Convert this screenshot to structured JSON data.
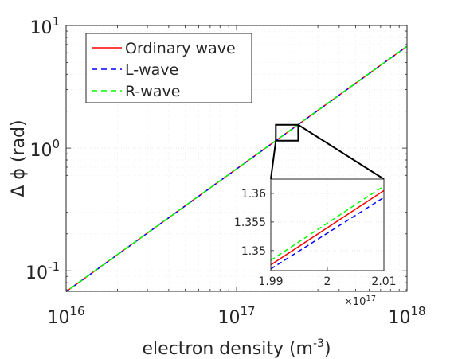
{
  "chart_data": [
    {
      "type": "line",
      "title": "",
      "xlabel": "electron density (m",
      "xlabel_exp": "-3",
      "xlabel_close": ")",
      "ylabel": "Δ ϕ (rad)",
      "xscale": "log",
      "yscale": "log",
      "xlim": [
        1e+16,
        1e+18
      ],
      "ylim": [
        0.068,
        10
      ],
      "grid": true,
      "legend_position": "top-left",
      "x_ticks": [
        {
          "value": 1e+16,
          "base": "10",
          "exp": "16"
        },
        {
          "value": 1e+17,
          "base": "10",
          "exp": "17"
        },
        {
          "value": 1e+18,
          "base": "10",
          "exp": "18"
        }
      ],
      "y_ticks": [
        {
          "value": 0.1,
          "base": "10",
          "exp": "-1"
        },
        {
          "value": 1,
          "base": "10",
          "exp": "0"
        },
        {
          "value": 10,
          "base": "10",
          "exp": "1"
        }
      ],
      "series": [
        {
          "name": "Ordinary wave",
          "color": "#ff0000",
          "dash": "solid",
          "x": [
            1e+16,
            1e+18
          ],
          "y": [
            0.0677,
            6.77
          ]
        },
        {
          "name": "L-wave",
          "color": "#0000ff",
          "dash": "dashed",
          "x": [
            1e+16,
            1e+18
          ],
          "y": [
            0.0676,
            6.76
          ]
        },
        {
          "name": "R-wave",
          "color": "#00ff00",
          "dash": "dashed",
          "x": [
            1e+16,
            1e+18
          ],
          "y": [
            0.0678,
            6.78
          ]
        }
      ],
      "zoom_box": {
        "x": [
          1.7e+17,
          2.3e+17
        ],
        "y": [
          1.15,
          1.55
        ]
      }
    },
    {
      "type": "line",
      "title": "",
      "xlim": [
        1.99e+17,
        2.01e+17
      ],
      "ylim": [
        1.3465,
        1.3625
      ],
      "x_ticks": [
        {
          "value": 1.99e+17,
          "label": "1.99"
        },
        {
          "value": 2e+17,
          "label": "2"
        },
        {
          "value": 2.01e+17,
          "label": "2.01"
        }
      ],
      "x_multiplier": {
        "base": "×10",
        "exp": "17"
      },
      "y_ticks": [
        {
          "value": 1.35,
          "label": "1.35"
        },
        {
          "value": 1.355,
          "label": "1.355"
        },
        {
          "value": 1.36,
          "label": "1.36"
        }
      ],
      "grid": true,
      "series": [
        {
          "name": "Ordinary wave",
          "color": "#ff0000",
          "dash": "solid",
          "x": [
            1.99e+17,
            2.01e+17
          ],
          "y": [
            1.3475,
            1.3605
          ]
        },
        {
          "name": "L-wave",
          "color": "#0000ff",
          "dash": "dashed",
          "x": [
            1.99e+17,
            2.01e+17
          ],
          "y": [
            1.3468,
            1.3593
          ]
        },
        {
          "name": "R-wave",
          "color": "#00ff00",
          "dash": "dashed",
          "x": [
            1.99e+17,
            2.01e+17
          ],
          "y": [
            1.3483,
            1.3613
          ]
        }
      ]
    }
  ]
}
